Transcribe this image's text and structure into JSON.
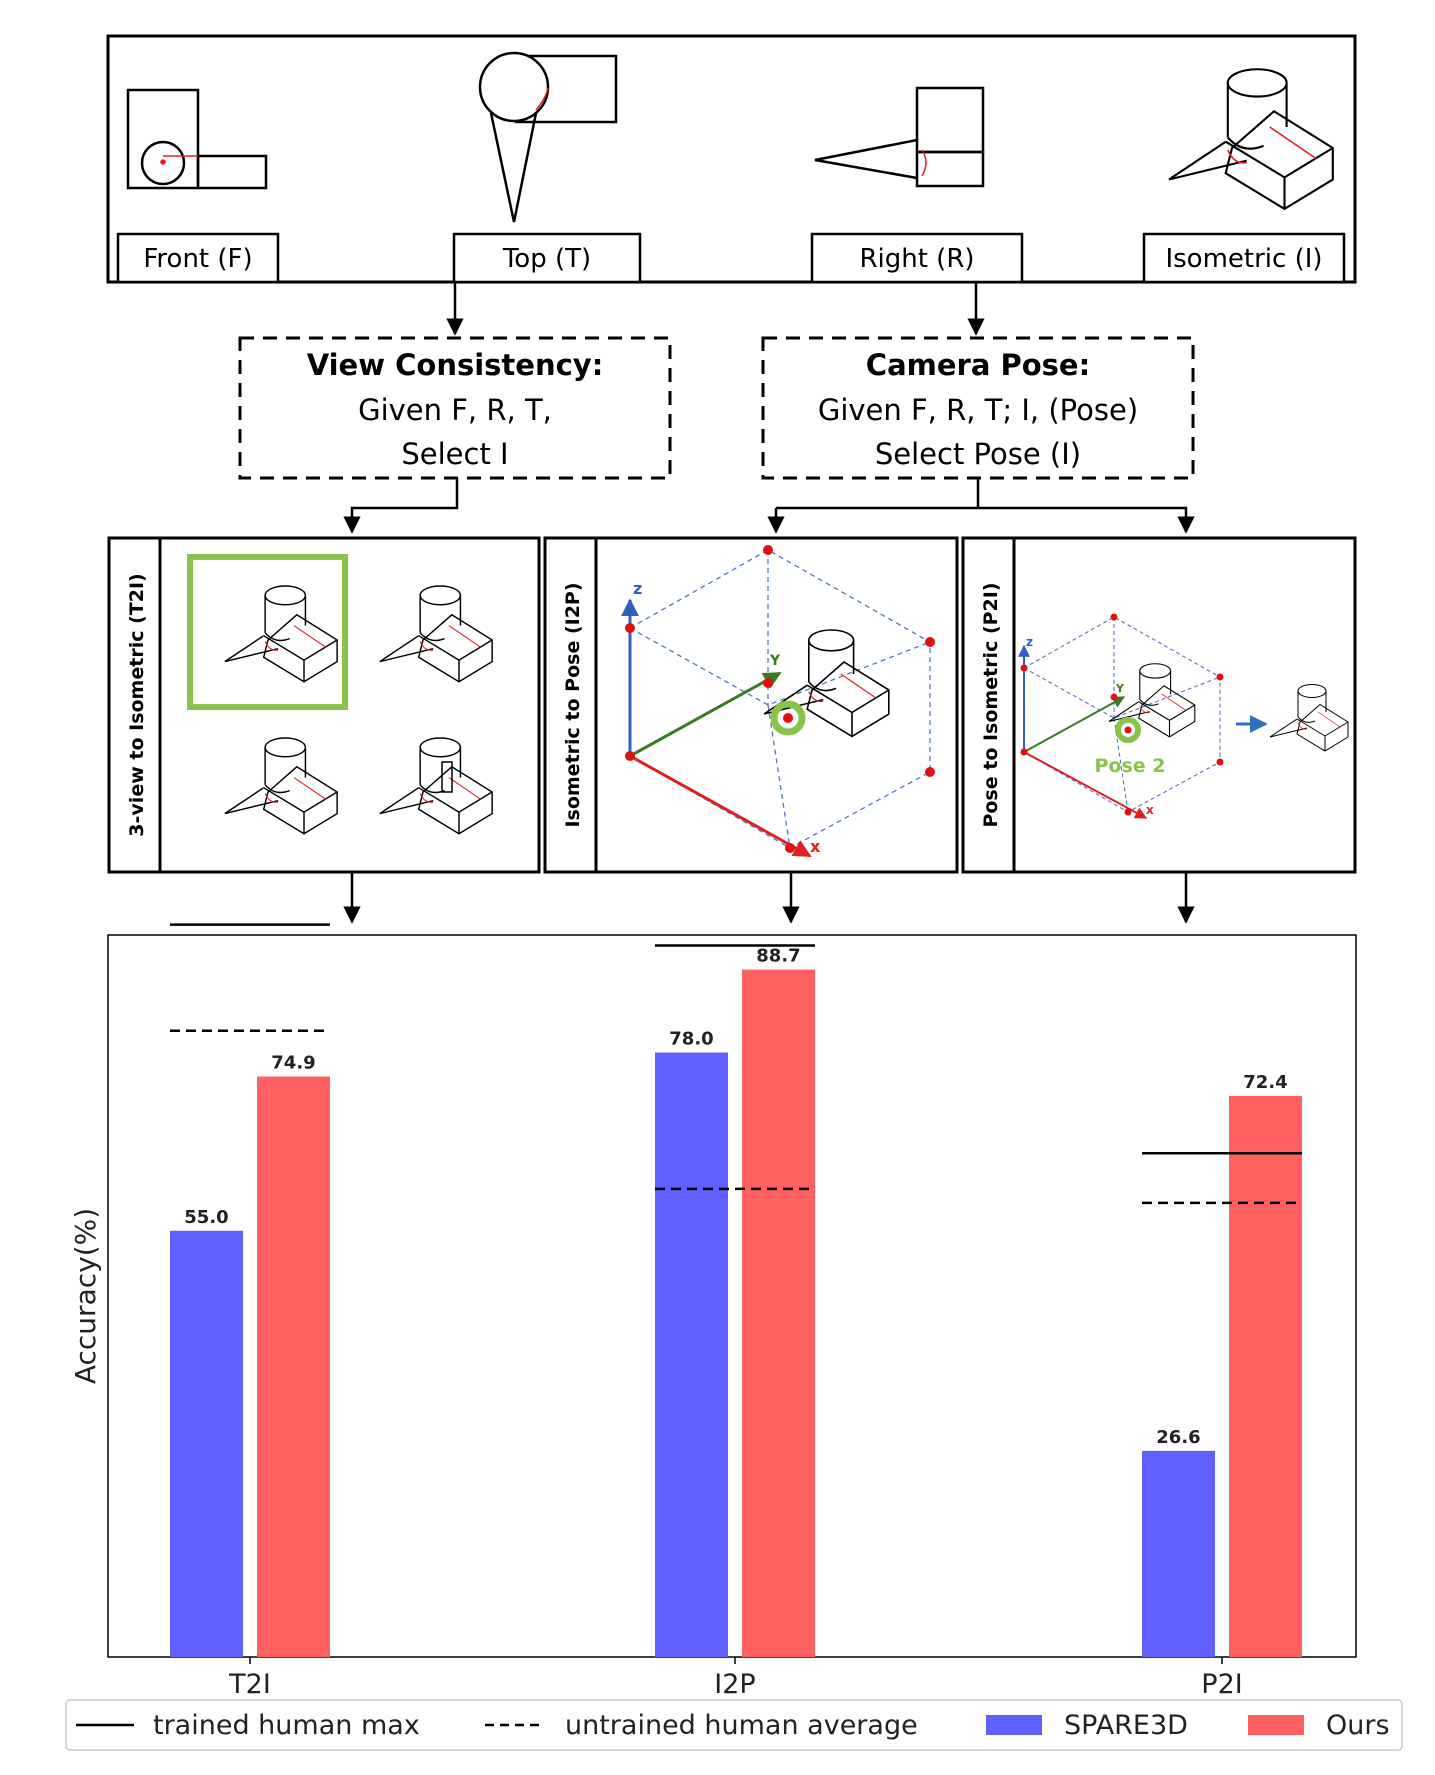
{
  "views": {
    "front": "Front (F)",
    "top": "Top (T)",
    "right": "Right (R)",
    "isometric": "Isometric (I)"
  },
  "tasks": {
    "view_consistency": {
      "title": "View Consistency:",
      "line1": "Given F, R, T,",
      "line2": "Select I"
    },
    "camera_pose": {
      "title": "Camera Pose:",
      "line1": "Given F, R, T; I, (Pose)",
      "line2": "Select Pose (I)"
    }
  },
  "panels": {
    "t2i": "3-view to Isometric (T2I)",
    "i2p": "Isometric to Pose (I2P)",
    "p2i": "Pose to Isometric (P2I)",
    "pose_label": "Pose 2",
    "axis_x": "x",
    "axis_y": "Y",
    "axis_z": "z"
  },
  "colors": {
    "spare3d": "#6060ff",
    "ours": "#ff6060",
    "highlight": "#88c34a",
    "axis_x": "#e02020",
    "axis_y": "#3a7a22",
    "axis_z": "#3060c0",
    "dot": "#e01010"
  },
  "chart_data": {
    "type": "bar",
    "ylabel": "Accuracy(%)",
    "xlabel": "",
    "ylim": [
      0,
      100
    ],
    "categories": [
      "T2I",
      "I2P",
      "P2I"
    ],
    "series": [
      {
        "name": "SPARE3D",
        "values": [
          55.0,
          78.0,
          26.6
        ]
      },
      {
        "name": "Ours",
        "values": [
          74.9,
          88.7,
          72.4
        ]
      }
    ],
    "reference_lines": [
      {
        "name": "trained human max",
        "style": "solid",
        "values": [
          94.5,
          91.8,
          65.0
        ]
      },
      {
        "name": "untrained human average",
        "style": "dashed",
        "values": [
          80.8,
          60.4,
          58.6
        ]
      }
    ],
    "legend_position": "bottom"
  }
}
